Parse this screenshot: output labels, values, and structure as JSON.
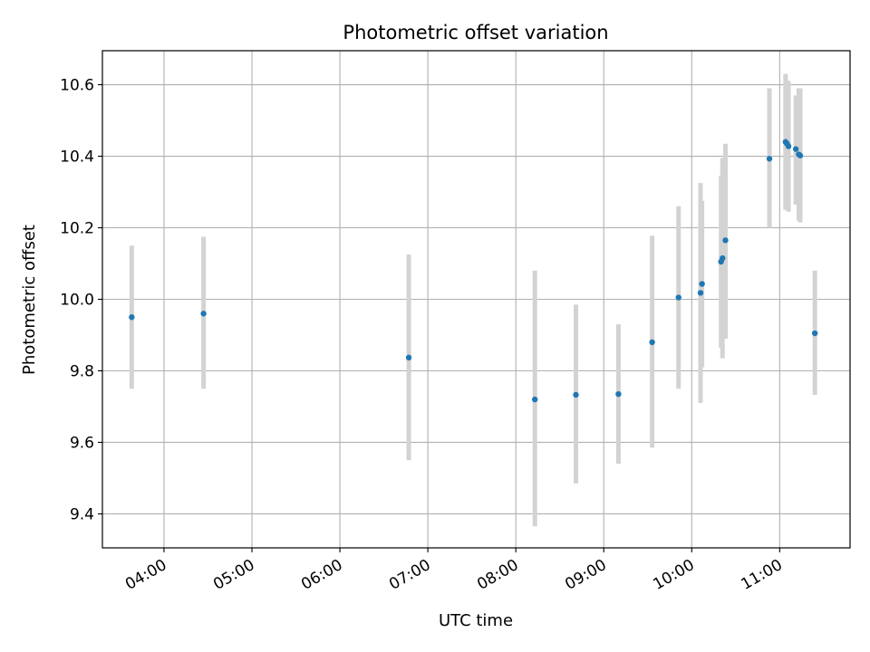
{
  "chart_data": {
    "type": "scatter",
    "title": "Photometric offset variation",
    "xlabel": "UTC time",
    "ylabel": "Photometric offset",
    "grid": true,
    "xlim": [
      "03:18",
      "11:48"
    ],
    "ylim": [
      9.305,
      10.695
    ],
    "x_ticks": [
      "04:00",
      "05:00",
      "06:00",
      "07:00",
      "08:00",
      "09:00",
      "10:00",
      "11:00"
    ],
    "y_ticks": [
      "9.4",
      "9.6",
      "9.8",
      "10.0",
      "10.2",
      "10.4",
      "10.6"
    ],
    "colors": {
      "points": "#1f77b4",
      "error_bars": "#d3d3d3",
      "grid": "#b0b0b0"
    },
    "points": [
      {
        "x": "03:38",
        "y": 9.95,
        "yerr_low": 9.75,
        "yerr_high": 10.15
      },
      {
        "x": "04:27",
        "y": 9.96,
        "yerr_low": 9.75,
        "yerr_high": 10.175
      },
      {
        "x": "06:47",
        "y": 9.837,
        "yerr_low": 9.55,
        "yerr_high": 10.125
      },
      {
        "x": "08:13",
        "y": 9.72,
        "yerr_low": 9.365,
        "yerr_high": 10.08
      },
      {
        "x": "08:41",
        "y": 9.733,
        "yerr_low": 9.485,
        "yerr_high": 9.985
      },
      {
        "x": "09:10",
        "y": 9.735,
        "yerr_low": 9.54,
        "yerr_high": 9.93
      },
      {
        "x": "09:33",
        "y": 9.88,
        "yerr_low": 9.585,
        "yerr_high": 10.178
      },
      {
        "x": "09:51",
        "y": 10.005,
        "yerr_low": 9.75,
        "yerr_high": 10.26
      },
      {
        "x": "10:06",
        "y": 10.018,
        "yerr_low": 9.71,
        "yerr_high": 10.325
      },
      {
        "x": "10:07",
        "y": 10.043,
        "yerr_low": 9.81,
        "yerr_high": 10.275
      },
      {
        "x": "10:20",
        "y": 10.105,
        "yerr_low": 9.865,
        "yerr_high": 10.345
      },
      {
        "x": "10:21",
        "y": 10.115,
        "yerr_low": 9.835,
        "yerr_high": 10.395
      },
      {
        "x": "10:23",
        "y": 10.165,
        "yerr_low": 9.89,
        "yerr_high": 10.435
      },
      {
        "x": "10:53",
        "y": 10.393,
        "yerr_low": 10.2,
        "yerr_high": 10.59
      },
      {
        "x": "11:04",
        "y": 10.44,
        "yerr_low": 10.25,
        "yerr_high": 10.63
      },
      {
        "x": "11:05",
        "y": 10.435,
        "yerr_low": 10.255,
        "yerr_high": 10.612
      },
      {
        "x": "11:06",
        "y": 10.428,
        "yerr_low": 10.245,
        "yerr_high": 10.61
      },
      {
        "x": "11:11",
        "y": 10.42,
        "yerr_low": 10.265,
        "yerr_high": 10.57
      },
      {
        "x": "11:13",
        "y": 10.405,
        "yerr_low": 10.22,
        "yerr_high": 10.59
      },
      {
        "x": "11:14",
        "y": 10.402,
        "yerr_low": 10.215,
        "yerr_high": 10.59
      },
      {
        "x": "11:24",
        "y": 9.905,
        "yerr_low": 9.733,
        "yerr_high": 10.08
      }
    ]
  }
}
